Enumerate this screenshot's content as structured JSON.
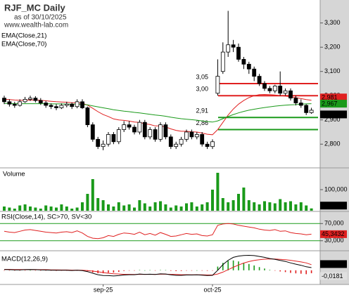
{
  "chart_data": [
    {
      "type": "candlestick",
      "title": "RJF_MC Daily",
      "subtitle": "as of 30/10/2025",
      "source": "www.wealth-lab.com",
      "categories": [
        null,
        null,
        null,
        null,
        null,
        null,
        null,
        null,
        null,
        null,
        null,
        null,
        null,
        null,
        null,
        null,
        null,
        null,
        null,
        "sep-25",
        null,
        null,
        null,
        null,
        null,
        null,
        null,
        null,
        null,
        null,
        null,
        null,
        null,
        null,
        null,
        null,
        null,
        null,
        null,
        null,
        "oct-25",
        null,
        null,
        null,
        null,
        null,
        null,
        null,
        null,
        null,
        null,
        null,
        null,
        null,
        null,
        null,
        null,
        null,
        null,
        null
      ],
      "open": [
        2.99,
        2.975,
        2.965,
        2.96,
        2.975,
        2.985,
        2.99,
        2.98,
        2.97,
        2.96,
        2.955,
        2.95,
        2.96,
        2.965,
        2.955,
        2.975,
        2.95,
        2.88,
        2.82,
        2.79,
        2.8,
        2.84,
        2.81,
        2.86,
        2.88,
        2.87,
        2.85,
        2.89,
        2.83,
        2.86,
        2.82,
        2.88,
        2.83,
        2.79,
        2.8,
        2.82,
        2.85,
        2.83,
        2.84,
        2.8,
        2.79,
        3.01,
        3.1,
        3.18,
        3.21,
        3.2,
        3.15,
        3.13,
        3.11,
        3.08,
        3.05,
        3.03,
        3.02,
        3.04,
        3.01,
        3.02,
        2.99,
        2.97,
        2.96,
        2.93
      ],
      "high": [
        3.0,
        2.985,
        2.975,
        2.985,
        2.995,
        3.0,
        2.998,
        2.99,
        2.978,
        2.968,
        2.965,
        2.968,
        2.975,
        2.972,
        2.985,
        2.985,
        2.955,
        2.89,
        2.83,
        2.815,
        2.85,
        2.85,
        2.87,
        2.895,
        2.895,
        2.88,
        2.9,
        2.9,
        2.87,
        2.87,
        2.89,
        2.89,
        2.84,
        2.81,
        2.83,
        2.86,
        2.86,
        2.85,
        2.85,
        2.81,
        2.82,
        3.15,
        3.22,
        3.35,
        3.23,
        3.215,
        3.16,
        3.14,
        3.12,
        3.09,
        3.06,
        3.04,
        3.045,
        3.1,
        3.03,
        3.03,
        3.0,
        2.985,
        2.965,
        2.95
      ],
      "low": [
        2.965,
        2.955,
        2.95,
        2.955,
        2.97,
        2.978,
        2.972,
        2.962,
        2.95,
        2.945,
        2.94,
        2.945,
        2.952,
        2.945,
        2.948,
        2.945,
        2.87,
        2.81,
        2.78,
        2.775,
        2.79,
        2.8,
        2.8,
        2.85,
        2.86,
        2.84,
        2.84,
        2.82,
        2.82,
        2.81,
        2.81,
        2.82,
        2.78,
        2.78,
        2.79,
        2.81,
        2.82,
        2.82,
        2.79,
        2.78,
        2.78,
        3.0,
        3.09,
        3.16,
        3.18,
        3.14,
        3.11,
        3.09,
        3.06,
        3.04,
        3.02,
        3.01,
        3.01,
        3.0,
        3.0,
        2.98,
        2.96,
        2.95,
        2.92,
        2.925
      ],
      "close": [
        2.975,
        2.965,
        2.96,
        2.975,
        2.985,
        2.99,
        2.98,
        2.97,
        2.96,
        2.955,
        2.95,
        2.96,
        2.965,
        2.955,
        2.975,
        2.95,
        2.88,
        2.82,
        2.79,
        2.8,
        2.84,
        2.81,
        2.86,
        2.88,
        2.87,
        2.85,
        2.89,
        2.83,
        2.86,
        2.82,
        2.88,
        2.83,
        2.79,
        2.8,
        2.82,
        2.85,
        2.83,
        2.84,
        2.8,
        2.79,
        2.81,
        3.08,
        3.18,
        3.21,
        3.2,
        3.15,
        3.13,
        3.11,
        3.08,
        3.05,
        3.03,
        3.02,
        3.04,
        3.01,
        3.02,
        2.99,
        2.97,
        2.96,
        2.93,
        2.94
      ],
      "close_label": "2,940",
      "up_color": "#ffffff",
      "down_color": "#000000",
      "series": [
        {
          "name": "EMA(Close,21)",
          "color": "#e02020",
          "last_label": "2,981",
          "values": [
            2.985,
            2.984,
            2.982,
            2.981,
            2.981,
            2.982,
            2.982,
            2.981,
            2.979,
            2.977,
            2.975,
            2.974,
            2.973,
            2.971,
            2.971,
            2.969,
            2.961,
            2.948,
            2.934,
            2.922,
            2.914,
            2.904,
            2.9,
            2.898,
            2.895,
            2.891,
            2.89,
            2.884,
            2.881,
            2.875,
            2.875,
            2.871,
            2.863,
            2.857,
            2.853,
            2.853,
            2.851,
            2.85,
            2.846,
            2.841,
            2.839,
            2.86,
            2.89,
            2.92,
            2.945,
            2.965,
            2.98,
            2.992,
            3.0,
            3.004,
            3.005,
            3.004,
            3.003,
            3.0,
            2.998,
            2.995,
            2.992,
            2.988,
            2.984,
            2.981
          ]
        },
        {
          "name": "EMA(Close,70)",
          "color": "#1a9a1a",
          "last_label": "2,967",
          "values": [
            2.968,
            2.968,
            2.967,
            2.967,
            2.967,
            2.967,
            2.967,
            2.967,
            2.967,
            2.966,
            2.966,
            2.966,
            2.965,
            2.965,
            2.965,
            2.964,
            2.962,
            2.958,
            2.954,
            2.95,
            2.946,
            2.942,
            2.939,
            2.936,
            2.934,
            2.931,
            2.929,
            2.926,
            2.923,
            2.92,
            2.918,
            2.915,
            2.911,
            2.908,
            2.905,
            2.903,
            2.901,
            2.899,
            2.896,
            2.893,
            2.891,
            2.896,
            2.905,
            2.914,
            2.922,
            2.929,
            2.935,
            2.94,
            2.944,
            2.948,
            2.951,
            2.954,
            2.957,
            2.959,
            2.961,
            2.962,
            2.963,
            2.965,
            2.966,
            2.967
          ]
        }
      ],
      "levels": [
        {
          "value": 3.05,
          "label": "3,05",
          "color": "#e02020"
        },
        {
          "value": 3.0,
          "label": "3,00",
          "color": "#e02020"
        },
        {
          "value": 2.91,
          "label": "2,91",
          "color": "#1a9a1a"
        },
        {
          "value": 2.86,
          "label": "2,86",
          "color": "#1a9a1a"
        }
      ],
      "ylim": [
        2.705,
        3.389
      ],
      "yticks": [
        {
          "value": 2.8,
          "label": "2,800"
        },
        {
          "value": 2.9,
          "label": "2,900"
        },
        {
          "value": 3.0,
          "label": "3,000"
        },
        {
          "value": 3.1,
          "label": "3,100"
        },
        {
          "value": 3.2,
          "label": "3,200"
        },
        {
          "value": 3.3,
          "label": "3,300"
        }
      ]
    },
    {
      "type": "bar",
      "title": "Volume",
      "color": "#1a9a1a",
      "last_label": "10,960",
      "values": [
        20,
        15,
        10,
        25,
        30,
        20,
        15,
        10,
        25,
        20,
        15,
        30,
        20,
        10,
        15,
        40,
        80,
        150,
        60,
        50,
        30,
        20,
        40,
        25,
        30,
        15,
        50,
        35,
        20,
        40,
        45,
        30,
        15,
        25,
        20,
        35,
        40,
        20,
        30,
        40,
        100,
        180,
        60,
        40,
        50,
        80,
        110,
        50,
        40,
        30,
        45,
        40,
        35,
        55,
        40,
        45,
        30,
        40,
        25,
        10.96
      ],
      "ylim": [
        0,
        200
      ],
      "yticks": [
        {
          "value": 100,
          "label": "100,000"
        }
      ]
    },
    {
      "type": "line",
      "title": "RSI(Close,14), SC>70, SV<30",
      "color": "#e02020",
      "last_label": "45,3432",
      "grid_color": "#1a9a1a",
      "values": [
        52,
        50,
        49,
        52,
        55,
        56,
        54,
        52,
        50,
        49,
        48,
        50,
        51,
        49,
        53,
        48,
        40,
        36,
        35,
        37,
        42,
        40,
        45,
        48,
        47,
        45,
        50,
        44,
        47,
        43,
        49,
        45,
        40,
        41,
        44,
        47,
        45,
        46,
        42,
        41,
        44,
        66,
        69,
        70,
        69,
        66,
        64,
        62,
        60,
        57,
        55,
        54,
        56,
        52,
        53,
        49,
        47,
        46,
        44,
        45.3432
      ],
      "ylim": [
        8.3,
        96.7
      ],
      "yticks": [
        {
          "value": 70,
          "label": "70,000"
        },
        {
          "value": 30,
          "label": "30,000"
        }
      ]
    },
    {
      "type": "macd",
      "title": "MACD(12,26,9)",
      "macd_color": "#000000",
      "signal_color": "#e02020",
      "hist_up_color": "#1a9a1a",
      "hist_down_color": "#e02020",
      "macd": [
        0.005,
        0.004,
        0.003,
        0.003,
        0.004,
        0.005,
        0.004,
        0.003,
        0.002,
        0.001,
        0,
        0,
        0,
        -0.001,
        0,
        -0.002,
        -0.008,
        -0.018,
        -0.027,
        -0.032,
        -0.033,
        -0.035,
        -0.033,
        -0.029,
        -0.027,
        -0.027,
        -0.023,
        -0.025,
        -0.024,
        -0.026,
        -0.022,
        -0.023,
        -0.028,
        -0.031,
        -0.031,
        -0.029,
        -0.029,
        -0.028,
        -0.03,
        -0.032,
        -0.031,
        0.0,
        0.035,
        0.062,
        0.08,
        0.088,
        0.092,
        0.093,
        0.091,
        0.086,
        0.08,
        0.073,
        0.068,
        0.061,
        0.055,
        0.046,
        0.038,
        0.031,
        0.022,
        0.0168
      ],
      "signal": [
        0.006,
        0.006,
        0.005,
        0.005,
        0.005,
        0.005,
        0.005,
        0.004,
        0.004,
        0.003,
        0.003,
        0.002,
        0.002,
        0.001,
        0.001,
        0.0,
        -0.002,
        -0.005,
        -0.009,
        -0.014,
        -0.018,
        -0.021,
        -0.023,
        -0.025,
        -0.025,
        -0.026,
        -0.025,
        -0.025,
        -0.025,
        -0.025,
        -0.024,
        -0.024,
        -0.025,
        -0.026,
        -0.027,
        -0.027,
        -0.028,
        -0.028,
        -0.028,
        -0.029,
        -0.029,
        -0.023,
        -0.011,
        0.004,
        0.019,
        0.033,
        0.045,
        0.054,
        0.061,
        0.066,
        0.069,
        0.07,
        0.07,
        0.068,
        0.066,
        0.062,
        0.057,
        0.052,
        0.046,
        0.0349
      ],
      "histogram": [
        -0.001,
        -0.002,
        -0.002,
        -0.002,
        -0.001,
        0,
        -0.001,
        -0.001,
        -0.002,
        -0.002,
        -0.003,
        -0.002,
        -0.002,
        -0.002,
        -0.001,
        -0.002,
        -0.006,
        -0.013,
        -0.018,
        -0.018,
        -0.015,
        -0.014,
        -0.01,
        -0.004,
        -0.002,
        -0.001,
        0.002,
        0,
        0.001,
        -0.001,
        0.002,
        0.001,
        -0.003,
        -0.005,
        -0.004,
        -0.002,
        -0.001,
        0,
        -0.002,
        -0.003,
        -0.002,
        0.023,
        0.046,
        0.058,
        0.061,
        0.055,
        0.047,
        0.039,
        0.03,
        0.02,
        0.011,
        0.003,
        -0.002,
        -0.007,
        -0.011,
        -0.016,
        -0.019,
        -0.021,
        -0.024,
        -0.0181
      ],
      "macd_last_label": "0,0168",
      "hist_last_label": "-0,0181",
      "ylim": [
        -0.0833,
        0.1167
      ]
    }
  ]
}
